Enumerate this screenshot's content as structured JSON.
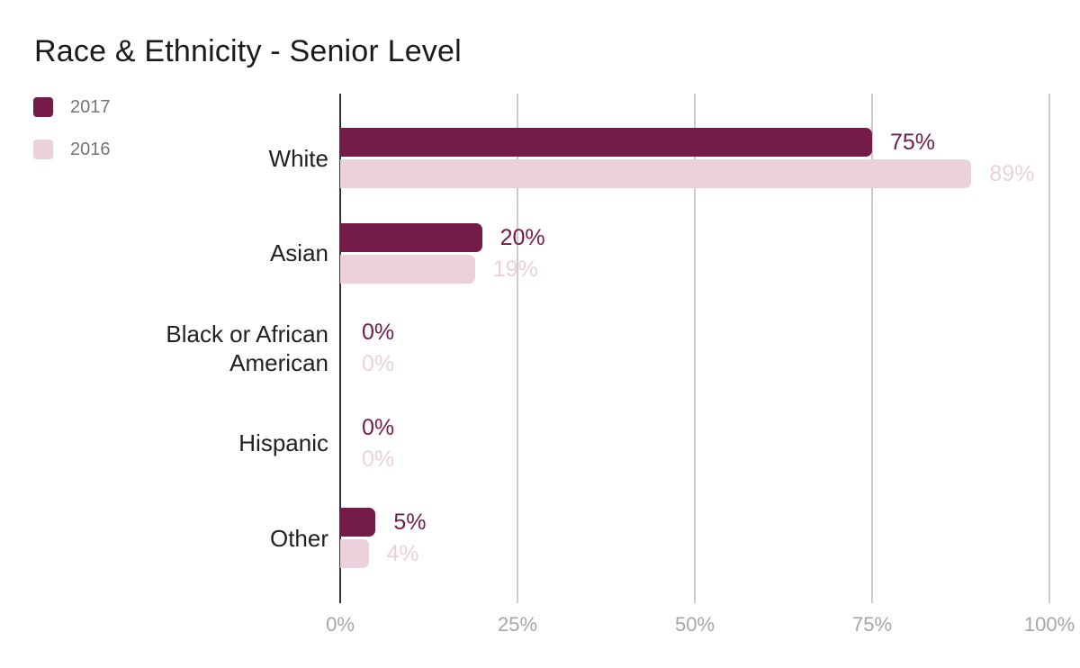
{
  "chart_data": {
    "type": "bar",
    "orientation": "horizontal",
    "title": "Race & Ethnicity - Senior Level",
    "categories": [
      "White",
      "Asian",
      "Black or African American",
      "Hispanic",
      "Other"
    ],
    "series": [
      {
        "name": "2017",
        "color": "#741b47",
        "values": [
          75,
          20,
          0,
          0,
          5
        ]
      },
      {
        "name": "2016",
        "color": "#ead1dc",
        "values": [
          89,
          19,
          0,
          0,
          4
        ]
      }
    ],
    "value_suffix": "%",
    "data_labels": "outside-end",
    "x_ticks": [
      0,
      25,
      50,
      75,
      100
    ],
    "x_tick_labels": [
      "0%",
      "25%",
      "50%",
      "75%",
      "100%"
    ],
    "xlim": [
      0,
      100
    ],
    "grid": true,
    "legend_position": "top-left"
  },
  "colors": {
    "background": "#ffffff",
    "title": "#1a1a1a",
    "category_label": "#212121",
    "legend_label": "#757575",
    "tick_label": "#a6a6a6",
    "gridline": "#cccccc",
    "axis_line": "#333333"
  }
}
